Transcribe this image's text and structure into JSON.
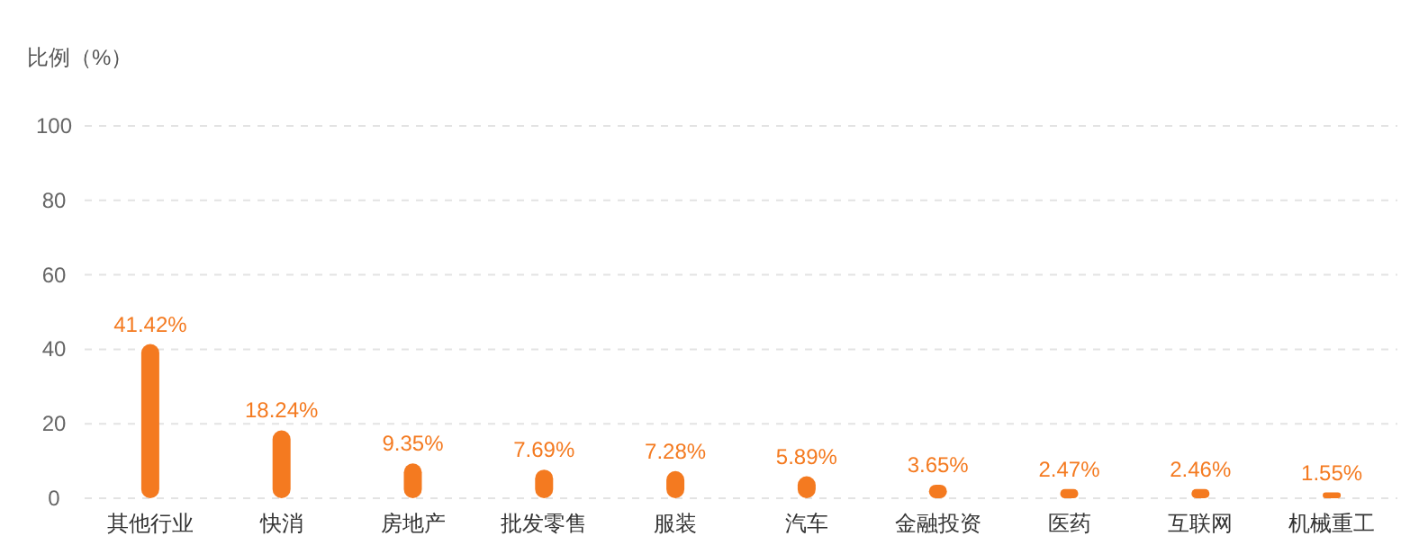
{
  "chart_data": {
    "type": "bar",
    "ylabel": "比例（%）",
    "categories": [
      "其他行业",
      "快消",
      "房地产",
      "批发零售",
      "服装",
      "汽车",
      "金融投资",
      "医药",
      "互联网",
      "机械重工"
    ],
    "values": [
      41.42,
      18.24,
      9.35,
      7.69,
      7.28,
      5.89,
      3.65,
      2.47,
      2.46,
      1.55
    ],
    "value_labels": [
      "41.42%",
      "18.24%",
      "9.35%",
      "7.69%",
      "7.28%",
      "5.89%",
      "3.65%",
      "2.47%",
      "2.46%",
      "1.55%"
    ],
    "color": "#f47a20",
    "ylim": [
      0,
      100
    ],
    "yticks": [
      0,
      20,
      40,
      60,
      80,
      100
    ],
    "grid": "y"
  }
}
